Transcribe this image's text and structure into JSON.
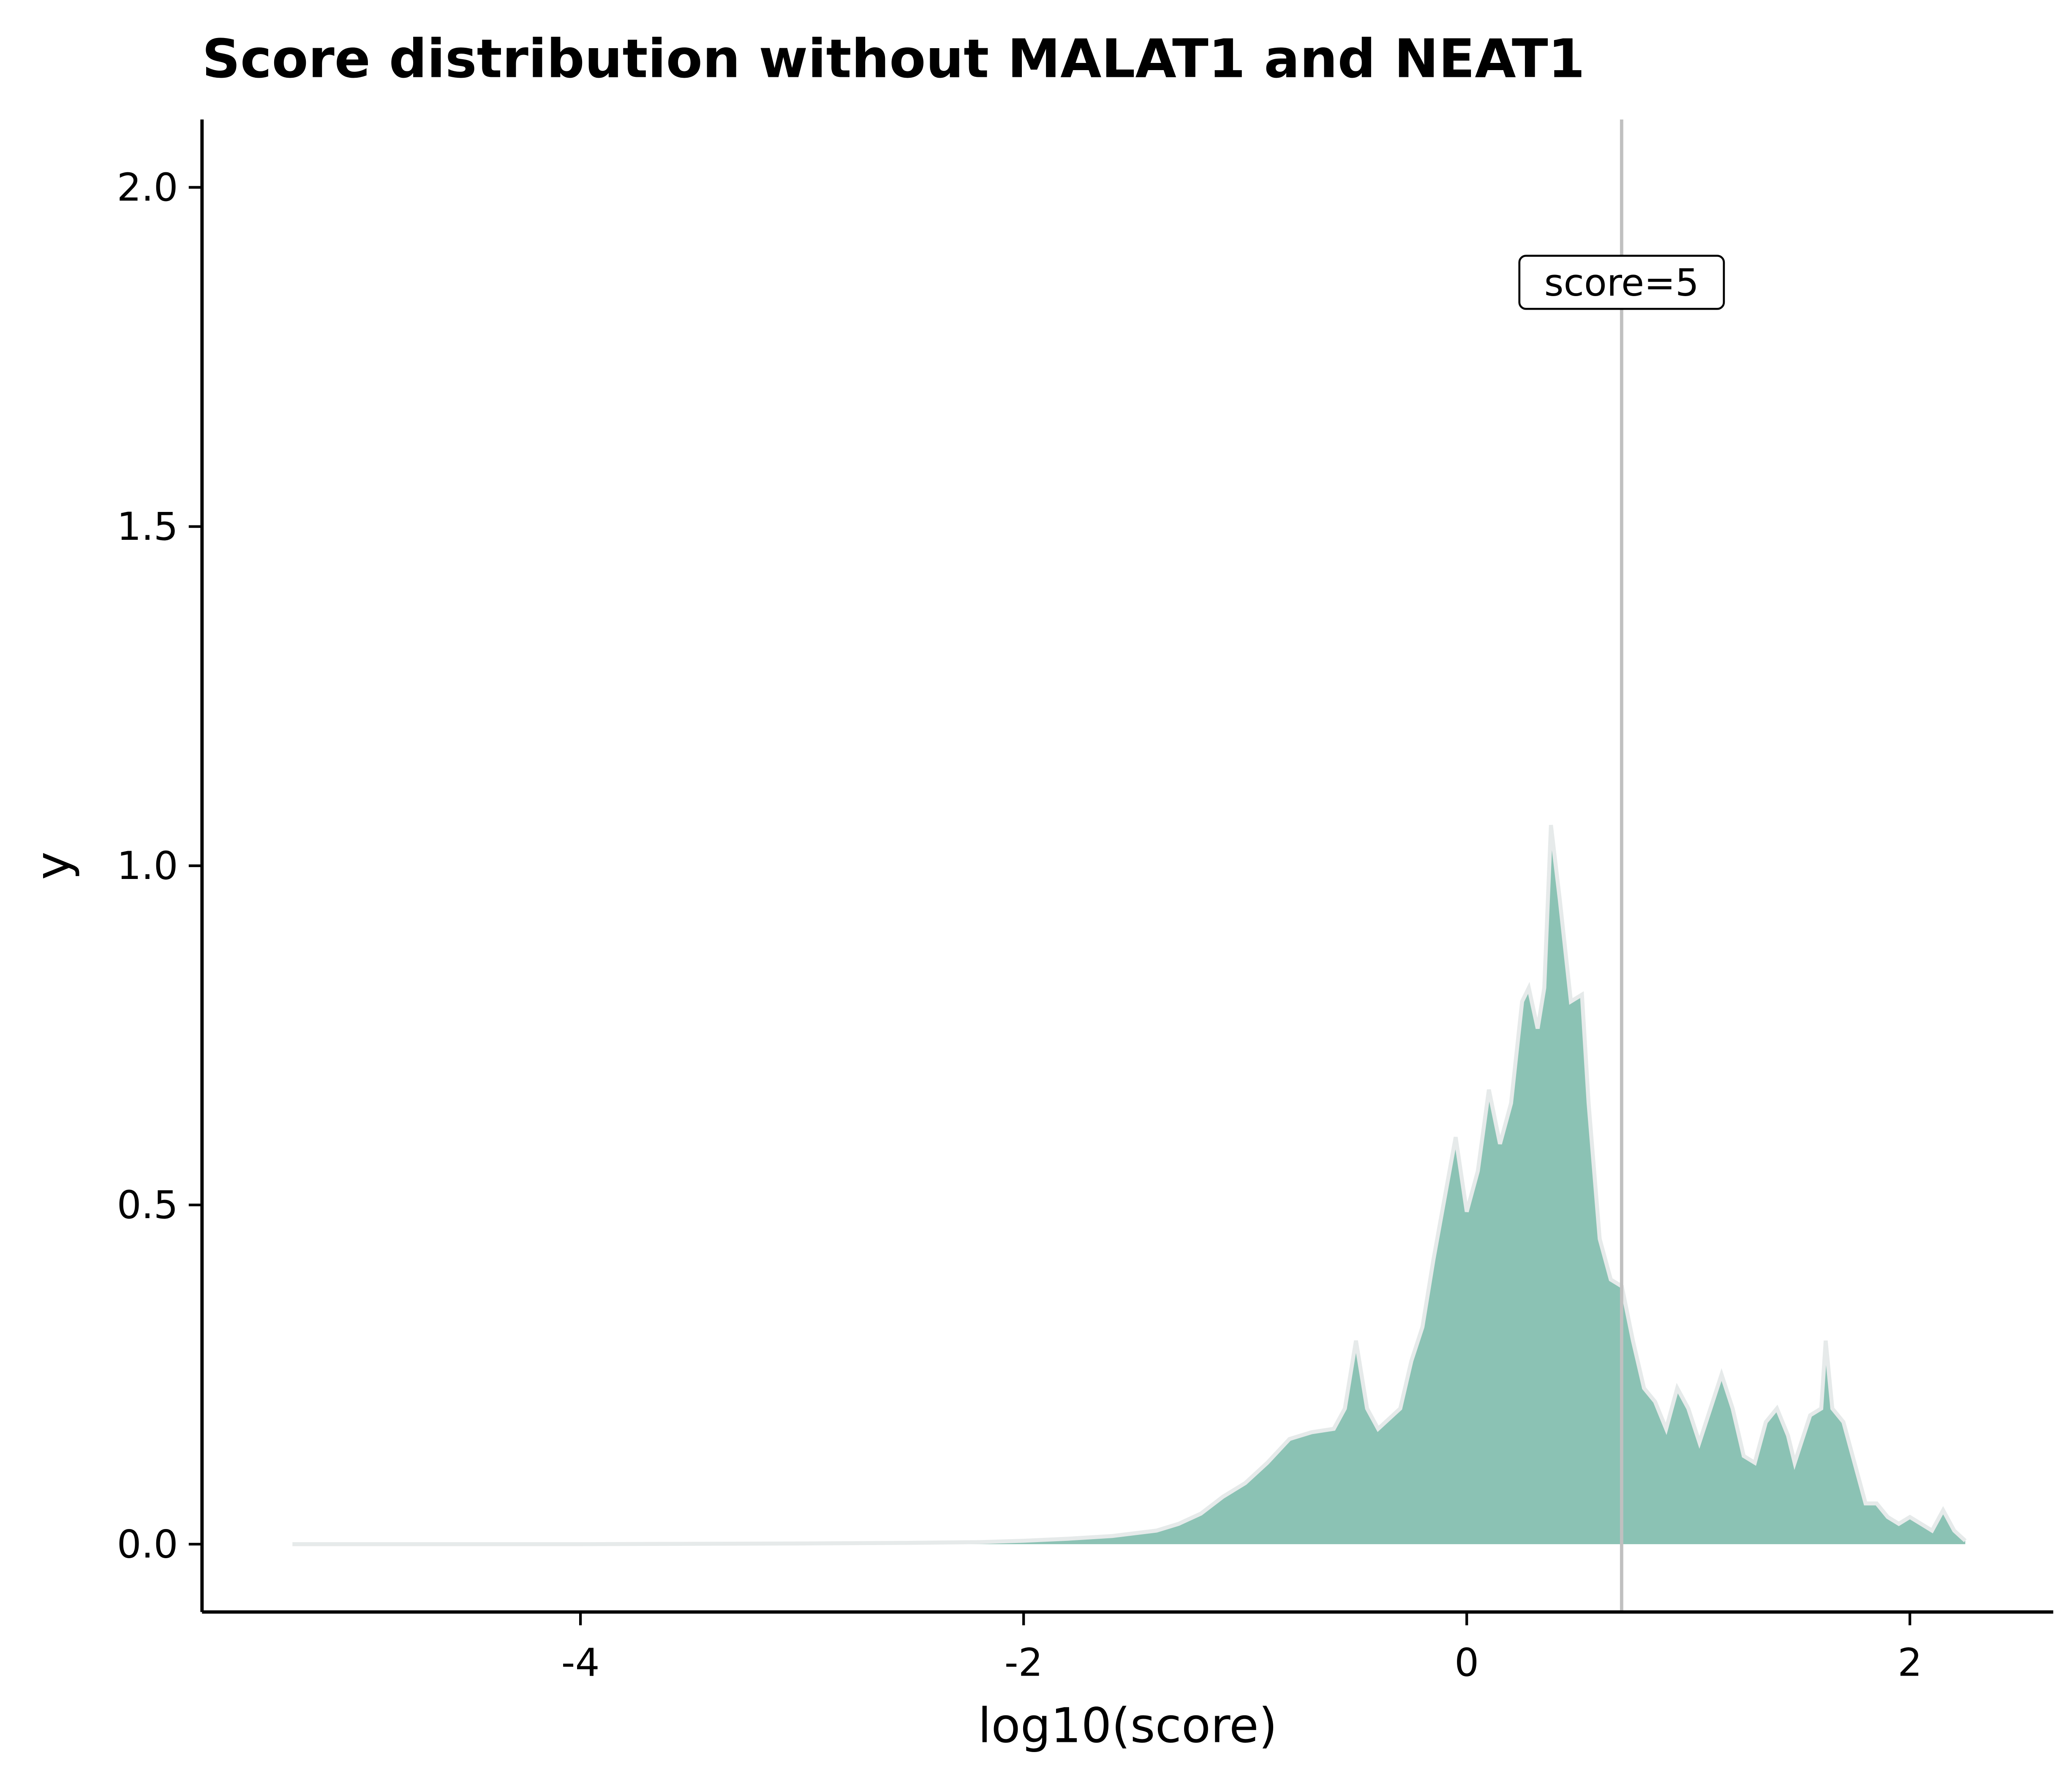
{
  "chart_data": {
    "type": "area",
    "title": "Score distribution without MALAT1 and NEAT1",
    "xlabel": "log10(score)",
    "ylabel": "y",
    "color": "#8bc2b4",
    "line_color": "#e6eaea",
    "x": [
      -5.3,
      -4,
      -3,
      -2.5,
      -2.2,
      -2,
      -1.8,
      -1.6,
      -1.4,
      -1.3,
      -1.2,
      -1.1,
      -1.0,
      -0.9,
      -0.8,
      -0.7,
      -0.6,
      -0.55,
      -0.5,
      -0.45,
      -0.4,
      -0.3,
      -0.25,
      -0.2,
      -0.15,
      -0.05,
      0.0,
      0.05,
      0.1,
      0.15,
      0.2,
      0.25,
      0.28,
      0.32,
      0.35,
      0.38,
      0.42,
      0.47,
      0.52,
      0.55,
      0.6,
      0.65,
      0.7,
      0.75,
      0.8,
      0.85,
      0.9,
      0.95,
      1.0,
      1.05,
      1.1,
      1.15,
      1.2,
      1.25,
      1.3,
      1.35,
      1.4,
      1.45,
      1.48,
      1.55,
      1.6,
      1.62,
      1.65,
      1.7,
      1.75,
      1.8,
      1.85,
      1.9,
      1.95,
      2.0,
      2.05,
      2.1,
      2.15,
      2.2,
      2.25
    ],
    "values": [
      0,
      0,
      0.001,
      0.002,
      0.003,
      0.005,
      0.008,
      0.012,
      0.02,
      0.03,
      0.045,
      0.07,
      0.09,
      0.12,
      0.155,
      0.165,
      0.17,
      0.2,
      0.3,
      0.2,
      0.17,
      0.2,
      0.27,
      0.32,
      0.42,
      0.6,
      0.49,
      0.55,
      0.67,
      0.59,
      0.65,
      0.8,
      0.82,
      0.76,
      0.82,
      1.06,
      0.95,
      0.8,
      0.81,
      0.65,
      0.45,
      0.39,
      0.38,
      0.3,
      0.23,
      0.21,
      0.17,
      0.23,
      0.2,
      0.15,
      0.2,
      0.25,
      0.2,
      0.13,
      0.12,
      0.18,
      0.2,
      0.16,
      0.12,
      0.19,
      0.2,
      0.3,
      0.2,
      0.18,
      0.12,
      0.06,
      0.06,
      0.04,
      0.03,
      0.04,
      0.03,
      0.02,
      0.05,
      0.02,
      0.005
    ],
    "xlim": [
      -5.708,
      2.647
    ],
    "ylim": [
      -0.1,
      2.1
    ],
    "xticks": [
      -4,
      -2,
      0,
      2
    ],
    "yticks": [
      {
        "value": 0,
        "label": "0.0"
      },
      {
        "value": 0.5,
        "label": "0.5"
      },
      {
        "value": 1,
        "label": "1.0"
      },
      {
        "value": 1.5,
        "label": "1.5"
      },
      {
        "value": 2,
        "label": "2.0"
      }
    ],
    "vline": {
      "x": 0.699,
      "color": "#c0c0c0"
    },
    "annotations": [
      {
        "text": "score=5",
        "x": 0.699,
        "y": 1.86
      }
    ]
  }
}
